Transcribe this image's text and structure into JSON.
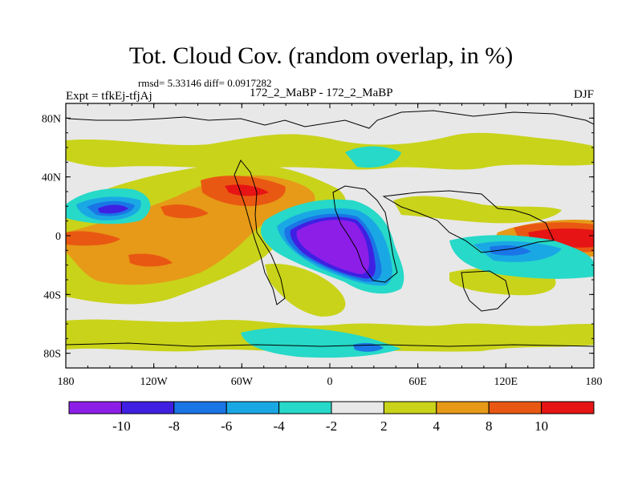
{
  "header": {
    "title": "Tot. Cloud Cov. (random overlap, in %)",
    "rmsd_diff": "rmsd= 5.33146 diff= 0.0917282",
    "experiment": "Expt = tfkEj-tfjAj",
    "comparison": "172_2_MaBP - 172_2_MaBP",
    "season": "DJF"
  },
  "chart_data": {
    "type": "heatmap",
    "title": "Tot. Cloud Cov. (random overlap, in %)",
    "projection": "cylindrical equidistant",
    "x_ticks": [
      "180",
      "120W",
      "60W",
      "0",
      "60E",
      "120E",
      "180"
    ],
    "y_ticks": [
      "80N",
      "40N",
      "0",
      "40S",
      "80S"
    ],
    "xlim": [
      -180,
      180
    ],
    "ylim": [
      -90,
      90
    ],
    "colorbar": {
      "levels": [
        "-10",
        "-8",
        "-6",
        "-4",
        "-2",
        "2",
        "4",
        "8",
        "10"
      ],
      "colors": [
        "#8d1ee8",
        "#3f20e2",
        "#1a75e6",
        "#1aa8e4",
        "#26d9c8",
        "#e8e8e8",
        "#c9d31a",
        "#e69a17",
        "#e95812",
        "#e61414"
      ]
    },
    "anomalies": [
      {
        "lon": -148,
        "lat": 18,
        "value": -9
      },
      {
        "lon": -160,
        "lat": -2,
        "value": 9
      },
      {
        "lon": -120,
        "lat": 10,
        "value": 7
      },
      {
        "lon": -110,
        "lat": -18,
        "value": 8
      },
      {
        "lon": -55,
        "lat": 30,
        "value": 9
      },
      {
        "lon": -75,
        "lat": 18,
        "value": 6
      },
      {
        "lon": 12,
        "lat": -10,
        "value": -11
      },
      {
        "lon": 40,
        "lat": -30,
        "value": -7
      },
      {
        "lon": 150,
        "lat": -2,
        "value": 10
      },
      {
        "lon": 120,
        "lat": -12,
        "value": -6
      },
      {
        "lon": 150,
        "lat": -25,
        "value": -5
      },
      {
        "lon": 60,
        "lat": 35,
        "value": 4
      },
      {
        "lon": 30,
        "lat": -80,
        "value": -7
      },
      {
        "lon": -20,
        "lat": -42,
        "value": 4
      }
    ]
  },
  "colors": {
    "land_outline": "#000000",
    "background": "#ffffff",
    "neutral": "#e8e8e8"
  }
}
